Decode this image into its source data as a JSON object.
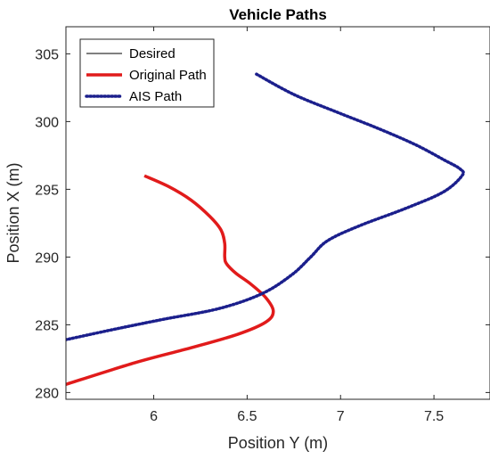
{
  "chart_data": {
    "type": "line",
    "title": "Vehicle Paths",
    "xlabel": "Position Y (m)",
    "ylabel": "Position X (m)",
    "xlim": [
      5.53,
      7.8
    ],
    "ylim": [
      279.5,
      307
    ],
    "xticks": [
      6,
      6.5,
      7,
      7.5
    ],
    "yticks": [
      280,
      285,
      290,
      295,
      300,
      305
    ],
    "grid": false,
    "legend_position": "top-left",
    "series": [
      {
        "name": "Desired",
        "color": "#000000",
        "style": "solid",
        "x": [],
        "y": []
      },
      {
        "name": "Original Path",
        "color": "#e11b1b",
        "style": "solid",
        "x": [
          5.95,
          6.08,
          6.2,
          6.3,
          6.36,
          6.38,
          6.38,
          6.39,
          6.44,
          6.52,
          6.6,
          6.64,
          6.6,
          6.45,
          6.2,
          5.9,
          5.53
        ],
        "y": [
          296.0,
          295.2,
          294.2,
          293.0,
          292.0,
          291.0,
          290.0,
          289.5,
          288.8,
          288.0,
          287.0,
          286.0,
          285.2,
          284.3,
          283.3,
          282.2,
          280.6
        ]
      },
      {
        "name": "AIS Path",
        "color": "#1b1f8c",
        "style": "dotted",
        "x": [
          6.55,
          6.75,
          6.98,
          7.2,
          7.4,
          7.55,
          7.64,
          7.65,
          7.55,
          7.35,
          7.1,
          6.93,
          6.84,
          6.74,
          6.58,
          6.35,
          6.05,
          5.8,
          5.53
        ],
        "y": [
          303.5,
          302.0,
          300.7,
          299.5,
          298.3,
          297.2,
          296.5,
          296.0,
          294.8,
          293.6,
          292.3,
          291.2,
          290.0,
          288.7,
          287.3,
          286.2,
          285.4,
          284.7,
          283.9
        ]
      }
    ]
  }
}
